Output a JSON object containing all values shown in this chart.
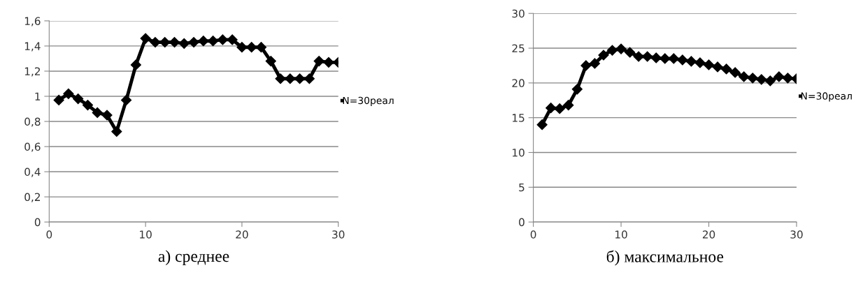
{
  "chart_data": [
    {
      "type": "line",
      "xlabel": "а) среднее",
      "x": [
        1,
        2,
        3,
        4,
        5,
        6,
        7,
        8,
        9,
        10,
        11,
        12,
        13,
        14,
        15,
        16,
        17,
        18,
        19,
        20,
        21,
        22,
        23,
        24,
        25,
        26,
        27,
        28,
        29,
        30
      ],
      "series": [
        {
          "name": "N=30реал",
          "color": "#000000",
          "values": [
            0.97,
            1.02,
            0.98,
            0.93,
            0.87,
            0.85,
            0.72,
            0.97,
            1.25,
            1.46,
            1.43,
            1.43,
            1.43,
            1.42,
            1.43,
            1.44,
            1.44,
            1.45,
            1.45,
            1.39,
            1.39,
            1.39,
            1.28,
            1.14,
            1.14,
            1.14,
            1.14,
            1.28,
            1.27,
            1.27
          ]
        }
      ],
      "xlim": [
        0,
        30
      ],
      "xticks": [
        0,
        10,
        20,
        30
      ],
      "ylim": [
        0,
        1.6
      ],
      "yticks": [
        0,
        {
          "value": 0.2,
          "label": "0,2"
        },
        {
          "value": 0.4,
          "label": "0,4"
        },
        {
          "value": 0.6,
          "label": "0,6"
        },
        {
          "value": 0.8,
          "label": "0,8"
        },
        1,
        {
          "value": 1.2,
          "label": "1,2"
        },
        {
          "value": 1.4,
          "label": "1,4"
        },
        {
          "value": 1.6,
          "label": "1,6"
        }
      ],
      "grid": "y",
      "legend": "right",
      "marker": "diamond",
      "line_style": "solid"
    },
    {
      "type": "line",
      "xlabel": "б) максимальное",
      "x": [
        1,
        2,
        3,
        4,
        5,
        6,
        7,
        8,
        9,
        10,
        11,
        12,
        13,
        14,
        15,
        16,
        17,
        18,
        19,
        20,
        21,
        22,
        23,
        24,
        25,
        26,
        27,
        28,
        29,
        30
      ],
      "series": [
        {
          "name": "N=30реал",
          "color": "#000000",
          "values": [
            14,
            16.4,
            16.3,
            16.8,
            19.1,
            22.5,
            22.8,
            24,
            24.7,
            24.9,
            24.4,
            23.8,
            23.8,
            23.6,
            23.5,
            23.5,
            23.3,
            23.1,
            22.9,
            22.6,
            22.3,
            22.0,
            21.5,
            20.9,
            20.7,
            20.5,
            20.3,
            20.9,
            20.7,
            20.6
          ]
        }
      ],
      "xlim": [
        0,
        30
      ],
      "xticks": [
        0,
        10,
        20,
        30
      ],
      "ylim": [
        0,
        30
      ],
      "yticks": [
        0,
        5,
        10,
        15,
        20,
        25,
        30
      ],
      "grid": "y",
      "legend": "right",
      "marker": "diamond",
      "line_style": "solid"
    }
  ]
}
